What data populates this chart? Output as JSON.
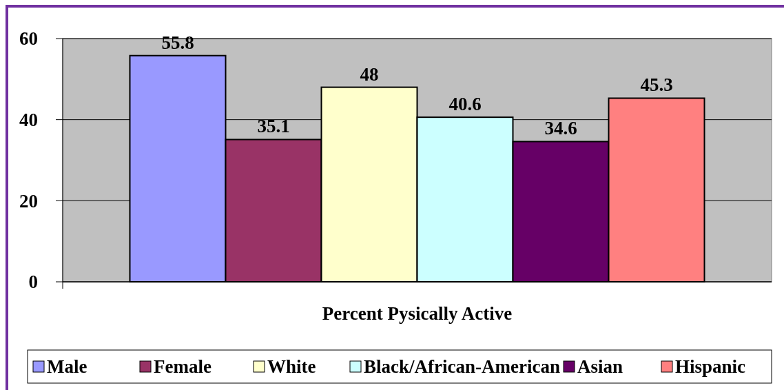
{
  "chart_data": {
    "type": "bar",
    "categories": [
      "Percent Pysically Active"
    ],
    "series": [
      {
        "name": "Male",
        "color": "#9999ff",
        "values": [
          55.8
        ]
      },
      {
        "name": "Female",
        "color": "#993366",
        "values": [
          35.1
        ]
      },
      {
        "name": "White",
        "color": "#ffffcc",
        "values": [
          48
        ]
      },
      {
        "name": "Black/African-American",
        "color": "#ccffff",
        "values": [
          40.6
        ]
      },
      {
        "name": "Asian",
        "color": "#660066",
        "values": [
          34.6
        ]
      },
      {
        "name": "Hispanic",
        "color": "#ff8080",
        "values": [
          45.3
        ]
      }
    ],
    "ylim": [
      0,
      60
    ],
    "yticks": [
      0,
      20,
      40,
      60
    ],
    "grid": "y",
    "legend": "bottom",
    "data_labels": true
  }
}
